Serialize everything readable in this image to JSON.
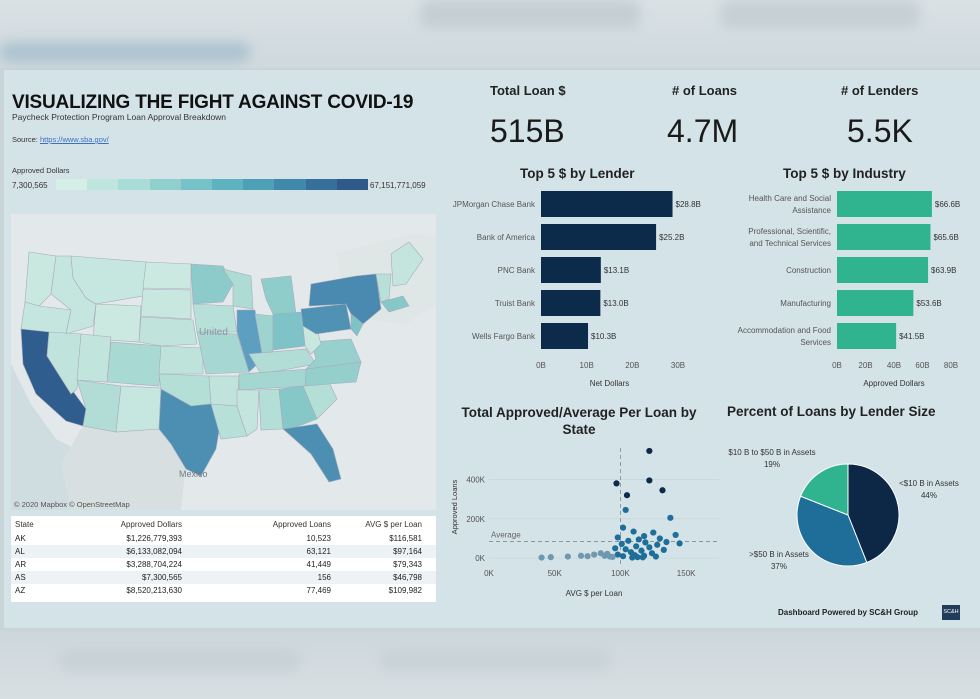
{
  "header": {
    "title": "VISUALIZING THE FIGHT AGAINST COVID-19",
    "subtitle": "Paycheck Protection Program Loan Approval Breakdown",
    "source_label": "Source: ",
    "source_link": "https://www.sba.gov/"
  },
  "legend": {
    "title": "Approved Dollars",
    "min": "7,300,565",
    "max": "67,151,771,059",
    "colors": [
      "#d3efe6",
      "#bfe6de",
      "#a8dcd7",
      "#8fd0cf",
      "#76c2c8",
      "#5fb2c0",
      "#4ea0b6",
      "#4189aa",
      "#36709a",
      "#2e5989"
    ]
  },
  "map": {
    "credit": "© 2020 Mapbox © OpenStreetMap",
    "label_mexico": "Mexico",
    "label_united": "United"
  },
  "table": {
    "headers": [
      "State",
      "Approved Dollars",
      "Approved Loans",
      "AVG $ per Loan"
    ],
    "rows": [
      [
        "AK",
        "$1,226,779,393",
        "10,523",
        "$116,581"
      ],
      [
        "AL",
        "$6,133,082,094",
        "63,121",
        "$97,164"
      ],
      [
        "AR",
        "$3,288,704,224",
        "41,449",
        "$79,343"
      ],
      [
        "AS",
        "$7,300,565",
        "156",
        "$46,798"
      ],
      [
        "AZ",
        "$8,520,213,630",
        "77,469",
        "$109,982"
      ]
    ]
  },
  "kpis": [
    {
      "label": "Total Loan $",
      "value": "515B"
    },
    {
      "label": "# of Loans",
      "value": "4.7M"
    },
    {
      "label": "# of Lenders",
      "value": "5.5K"
    }
  ],
  "chart_data": [
    {
      "type": "bar",
      "title": "Top 5 $ by Lender",
      "xlabel": "Net Dollars",
      "categories": [
        "JPMorgan Chase Bank",
        "Bank of America",
        "PNC Bank",
        "Truist Bank",
        "Wells Fargo Bank"
      ],
      "values": [
        28.8,
        25.2,
        13.1,
        13.0,
        10.3
      ],
      "data_labels": [
        "$28.8B",
        "$25.2B",
        "$13.1B",
        "$13.0B",
        "$10.3B"
      ],
      "xticks": [
        "0B",
        "10B",
        "20B",
        "30B"
      ],
      "xlim": [
        0,
        30
      ],
      "color": "#0c2a4a"
    },
    {
      "type": "bar",
      "title": "Top 5 $ by Industry",
      "xlabel": "Approved Dollars",
      "categories": [
        [
          "Health Care and Social",
          "Assistance"
        ],
        [
          "Professional, Scientific,",
          "and Technical Services"
        ],
        [
          "Construction"
        ],
        [
          "Manufacturing"
        ],
        [
          "Accommodation and Food",
          "Services"
        ]
      ],
      "values": [
        66.6,
        65.6,
        63.9,
        53.6,
        41.5
      ],
      "data_labels": [
        "$66.6B",
        "$65.6B",
        "$63.9B",
        "$53.6B",
        "$41.5B"
      ],
      "xticks": [
        "0B",
        "20B",
        "40B",
        "60B",
        "80B"
      ],
      "xlim": [
        0,
        80
      ],
      "color": "#2fb48f"
    },
    {
      "type": "scatter",
      "title": [
        "Total Approved/Average Per Loan by",
        "State"
      ],
      "xlabel": "AVG $ per Loan",
      "ylabel": "Approved Loans",
      "xticks": [
        "0K",
        "50K",
        "100K",
        "150K"
      ],
      "yticks": [
        "0K",
        "200K",
        "400K"
      ],
      "xlim": [
        0,
        175
      ],
      "ylim": [
        -40,
        560
      ],
      "average_label": "Average",
      "average_x": 100,
      "average_y": 85,
      "points": [
        [
          122,
          545
        ],
        [
          97,
          380
        ],
        [
          122,
          395
        ],
        [
          132,
          345
        ],
        [
          105,
          320
        ],
        [
          104,
          245
        ],
        [
          138,
          205
        ],
        [
          102,
          155
        ],
        [
          110,
          135
        ],
        [
          125,
          130
        ],
        [
          142,
          118
        ],
        [
          118,
          112
        ],
        [
          98,
          105
        ],
        [
          130,
          100
        ],
        [
          114,
          95
        ],
        [
          106,
          88
        ],
        [
          135,
          82
        ],
        [
          119,
          80
        ],
        [
          145,
          75
        ],
        [
          101,
          72
        ],
        [
          128,
          68
        ],
        [
          112,
          60
        ],
        [
          122,
          55
        ],
        [
          96,
          50
        ],
        [
          104,
          45
        ],
        [
          133,
          42
        ],
        [
          116,
          38
        ],
        [
          108,
          30
        ],
        [
          124,
          25
        ],
        [
          90,
          22
        ],
        [
          98,
          18
        ],
        [
          111,
          15
        ],
        [
          118,
          12
        ],
        [
          102,
          10
        ],
        [
          127,
          8
        ],
        [
          94,
          6
        ],
        [
          85,
          25
        ],
        [
          80,
          18
        ],
        [
          75,
          10
        ],
        [
          88,
          12
        ],
        [
          92,
          8
        ],
        [
          70,
          12
        ],
        [
          60,
          8
        ],
        [
          47,
          5
        ],
        [
          40,
          3
        ],
        [
          113,
          5
        ],
        [
          109,
          3
        ],
        [
          117,
          4
        ],
        [
          183,
          15
        ]
      ]
    },
    {
      "type": "pie",
      "title": "Percent of Loans by Lender Size",
      "slices": [
        {
          "label": "<$10 B in Assets",
          "pct": 44,
          "color": "#0d2847"
        },
        {
          "label": ">$50 B in Assets",
          "pct": 37,
          "color": "#1f6d99"
        },
        {
          "label": "$10 B to $50 B in Assets",
          "pct": 19,
          "color": "#2fb48f"
        }
      ],
      "labels_pct": [
        "44%",
        "37%",
        "19%"
      ]
    }
  ],
  "footer": {
    "text": "Dashboard Powered by SC&H Group",
    "logo": "SC&H"
  }
}
